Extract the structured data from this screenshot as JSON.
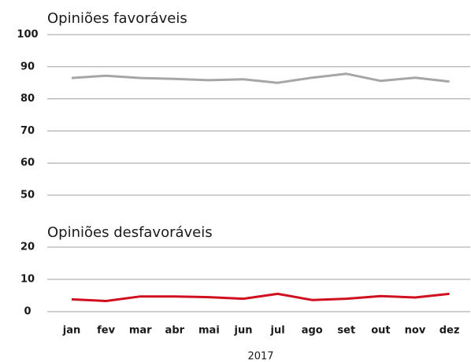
{
  "chart_data": [
    {
      "type": "line",
      "title": "Opiniões favoráveis",
      "color": "#a6a6a6",
      "values": [
        86.5,
        87.2,
        86.5,
        86.2,
        85.8,
        86.1,
        85.0,
        86.6,
        87.8,
        85.6,
        86.6,
        85.4
      ],
      "ylim": [
        50,
        100
      ],
      "yticks": [
        50,
        60,
        70,
        80,
        90,
        100
      ],
      "grid": true
    },
    {
      "type": "line",
      "title": "Opiniões desfavoráveis",
      "color": "#d0101f",
      "categories": [
        "jan",
        "fev",
        "mar",
        "abr",
        "mai",
        "jun",
        "jul",
        "ago",
        "set",
        "out",
        "nov",
        "dez"
      ],
      "values": [
        3.8,
        3.3,
        4.7,
        4.7,
        4.5,
        4.0,
        5.5,
        3.6,
        4.0,
        4.8,
        4.4,
        5.5
      ],
      "ylim": [
        0,
        20
      ],
      "yticks": [
        0,
        10,
        20
      ],
      "grid": true,
      "xlabel": "2017"
    }
  ]
}
